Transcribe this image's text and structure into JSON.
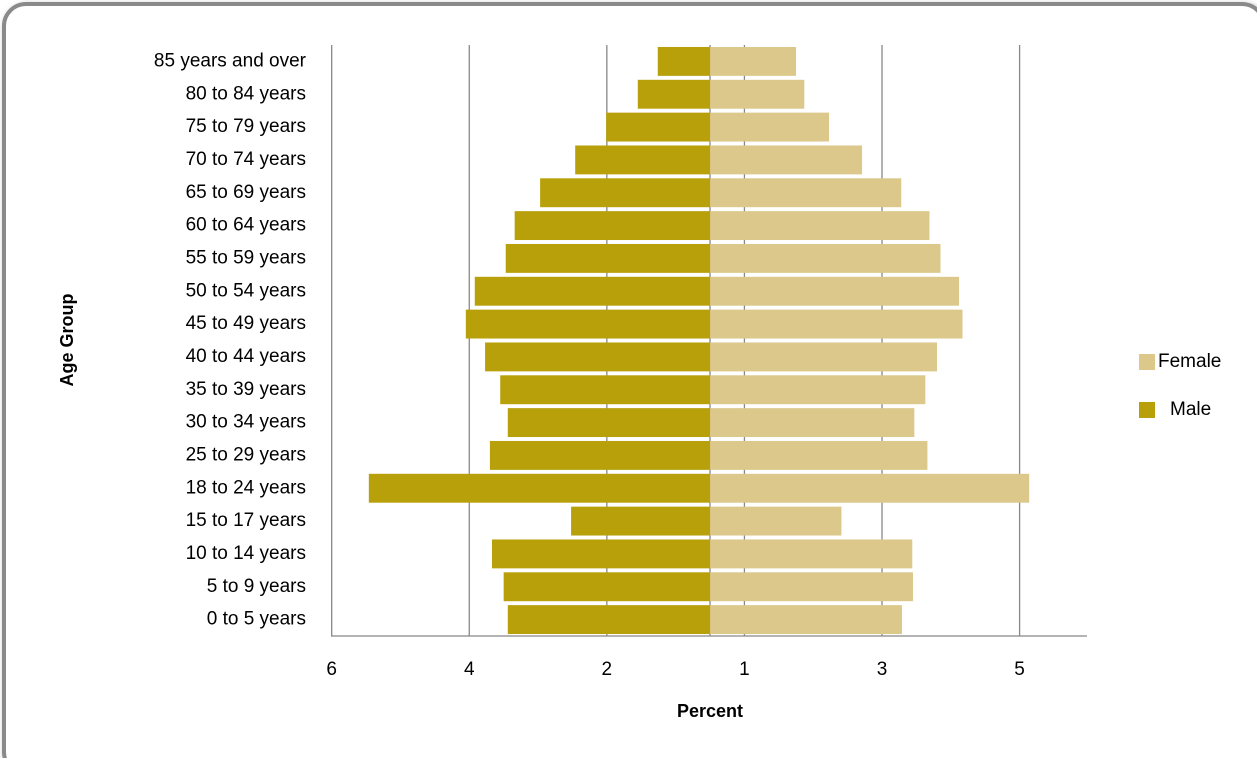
{
  "chart_data": {
    "type": "bar",
    "orientation": "horizontal",
    "y_label": "Age Group",
    "x_label": "Percent",
    "categories": [
      "0 to 5 years",
      "5 to 9 years",
      "10 to 14 years",
      "15 to 17 years",
      "18 to 24 years",
      "25 to 29 years",
      "30 to 34 years",
      "35 to 39 years",
      "40 to 44 years",
      "45 to 49 years",
      "50 to 54 years",
      "55 to 59 years",
      "60 to 64 years",
      "65 to 69 years",
      "70 to 74 years",
      "75 to 79 years",
      "80 to 84 years",
      "85 years and over"
    ],
    "series": [
      {
        "name": "Female",
        "color": "#dcc88a",
        "values": [
          2.79,
          2.95,
          2.94,
          1.91,
          4.64,
          3.16,
          2.97,
          3.13,
          3.3,
          3.67,
          3.62,
          3.35,
          3.19,
          2.78,
          2.21,
          1.73,
          1.37,
          1.25
        ]
      },
      {
        "name": "Male",
        "color": "#b8a00a",
        "values": [
          -2.94,
          -3.0,
          -3.17,
          -2.02,
          -4.96,
          -3.2,
          -2.94,
          -3.05,
          -3.27,
          -3.55,
          -3.42,
          -2.97,
          -2.84,
          -2.47,
          -1.96,
          -1.51,
          -1.05,
          -0.76
        ]
      }
    ],
    "xlim": [
      -5.51,
      5.48
    ],
    "xticks": [
      {
        "value": -5.5,
        "label": "6"
      },
      {
        "value": -3.5,
        "label": "4"
      },
      {
        "value": -1.5,
        "label": "2"
      },
      {
        "value": 0.5,
        "label": "1"
      },
      {
        "value": 2.5,
        "label": "3"
      },
      {
        "value": 4.5,
        "label": "5"
      }
    ],
    "grid": true,
    "legend": "right"
  }
}
